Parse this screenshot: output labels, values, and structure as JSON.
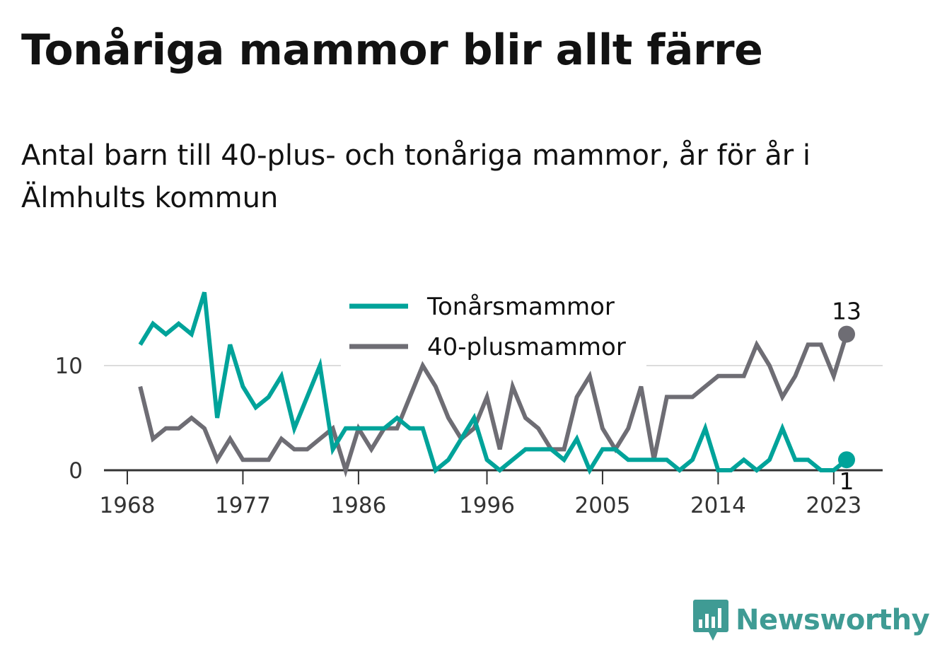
{
  "title": "Tonåriga mammor blir allt färre",
  "subtitle": "Antal barn till 40-plus- och tonåriga mammor, år för år i Älmhults kommun",
  "logo_text": "Newsworthy",
  "colors": {
    "teal": "#00a39a",
    "gray": "#6e6d74",
    "grid": "#dcdcdc",
    "axis": "#333333"
  },
  "chart_data": {
    "type": "line",
    "title": "Tonåriga mammor blir allt färre",
    "subtitle": "Antal barn till 40-plus- och tonåriga mammor, år för år i Älmhults kommun",
    "x": [
      1969,
      1970,
      1971,
      1972,
      1973,
      1974,
      1975,
      1976,
      1977,
      1978,
      1979,
      1980,
      1981,
      1982,
      1983,
      1984,
      1985,
      1986,
      1987,
      1988,
      1989,
      1990,
      1991,
      1992,
      1993,
      1994,
      1995,
      1996,
      1997,
      1998,
      1999,
      2000,
      2001,
      2002,
      2003,
      2004,
      2005,
      2006,
      2007,
      2008,
      2009,
      2010,
      2011,
      2012,
      2013,
      2014,
      2015,
      2016,
      2017,
      2018,
      2019,
      2020,
      2021,
      2022,
      2023,
      2024
    ],
    "x_ticks": [
      1968,
      1977,
      1986,
      1996,
      2005,
      2014,
      2023
    ],
    "y_ticks": [
      0,
      10
    ],
    "ylim": [
      0,
      18
    ],
    "grid": true,
    "legend": "top-center",
    "series": [
      {
        "name": "Tonårsmammor",
        "color": "#00a39a",
        "values": [
          12,
          14,
          13,
          14,
          13,
          17,
          5,
          12,
          8,
          6,
          7,
          9,
          4,
          7,
          10,
          2,
          4,
          4,
          4,
          4,
          5,
          4,
          4,
          0,
          1,
          3,
          5,
          1,
          0,
          1,
          2,
          2,
          2,
          1,
          3,
          0,
          2,
          2,
          1,
          1,
          1,
          1,
          0,
          1,
          4,
          0,
          0,
          1,
          0,
          1,
          4,
          1,
          1,
          0,
          0,
          1
        ],
        "end_label": "1"
      },
      {
        "name": "40-plusmammor",
        "color": "#6e6d74",
        "values": [
          8,
          3,
          4,
          4,
          5,
          4,
          1,
          3,
          1,
          1,
          1,
          3,
          2,
          2,
          3,
          4,
          0,
          4,
          2,
          4,
          4,
          7,
          10,
          8,
          5,
          3,
          4,
          7,
          2,
          8,
          5,
          4,
          2,
          2,
          7,
          9,
          4,
          2,
          4,
          8,
          1,
          7,
          7,
          7,
          8,
          9,
          9,
          9,
          12,
          10,
          7,
          9,
          12,
          12,
          9,
          13
        ],
        "end_label": "13"
      }
    ]
  }
}
